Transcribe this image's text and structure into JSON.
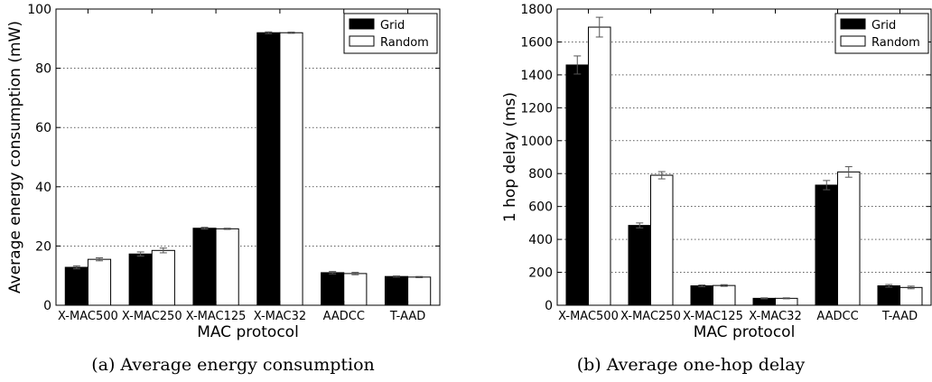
{
  "chart_data": [
    {
      "type": "bar",
      "categories": [
        "X-MAC500",
        "X-MAC250",
        "X-MAC125",
        "X-MAC32",
        "AADCC",
        "T-AAD"
      ],
      "series": [
        {
          "name": "Grid",
          "values": [
            12.8,
            17.3,
            26.0,
            92.0,
            11.0,
            9.7
          ],
          "errors": [
            0.5,
            0.7,
            0.3,
            0.3,
            0.4,
            0.2
          ],
          "color": "#000000"
        },
        {
          "name": "Random",
          "values": [
            15.5,
            18.5,
            25.8,
            92.0,
            10.7,
            9.5
          ],
          "errors": [
            0.5,
            0.8,
            0.2,
            0.2,
            0.4,
            0.2
          ],
          "color": "#ffffff"
        }
      ],
      "xlabel": "MAC protocol",
      "ylabel": "Average energy consumption (mW)",
      "ylim": [
        0,
        100
      ],
      "yticks": [
        0,
        20,
        40,
        60,
        80,
        100
      ],
      "grid": "horizontal dotted",
      "legend": "top-right",
      "caption": "(a) Average energy consumption"
    },
    {
      "type": "bar",
      "categories": [
        "X-MAC500",
        "X-MAC250",
        "X-MAC125",
        "X-MAC32",
        "AADCC",
        "T-AAD"
      ],
      "series": [
        {
          "name": "Grid",
          "values": [
            1460,
            485,
            118,
            42,
            730,
            118
          ],
          "errors": [
            55,
            15,
            5,
            3,
            28,
            8
          ],
          "color": "#000000"
        },
        {
          "name": "Random",
          "values": [
            1690,
            790,
            120,
            42,
            810,
            108
          ],
          "errors": [
            60,
            22,
            5,
            3,
            32,
            8
          ],
          "color": "#ffffff"
        }
      ],
      "xlabel": "MAC protocol",
      "ylabel": "1 hop delay (ms)",
      "ylim": [
        0,
        1800
      ],
      "yticks": [
        0,
        200,
        400,
        600,
        800,
        1000,
        1200,
        1400,
        1600,
        1800
      ],
      "grid": "horizontal dotted",
      "legend": "top-right",
      "caption": "(b) Average one-hop delay"
    }
  ]
}
